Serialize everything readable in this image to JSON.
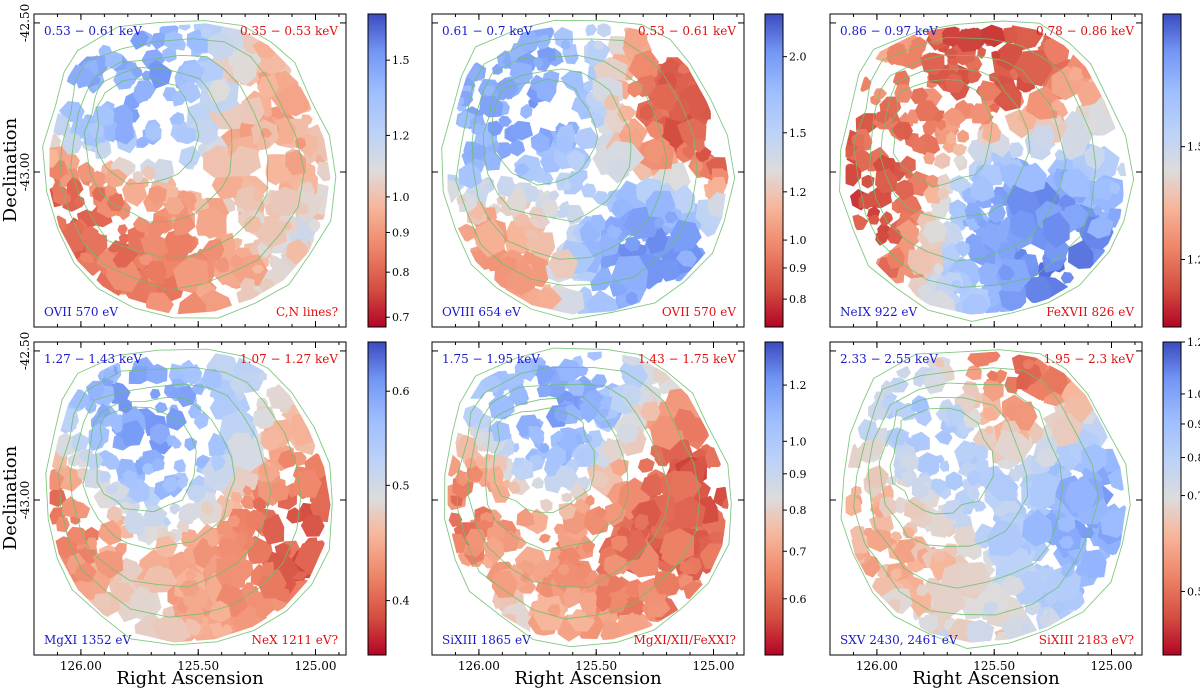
{
  "figure": {
    "xlabel": "Right Ascension",
    "ylabel": "Declination",
    "x_ticks": [
      "126.00",
      "125.50",
      "125.00"
    ],
    "y_ticks": [
      "-42.50",
      "-43.00"
    ]
  },
  "colors": {
    "blue_label": "#1a1acc",
    "red_label": "#e01010",
    "contour": "#6cbf6c",
    "cmap_low": "#b40426",
    "cmap_mid": "#dddcdc",
    "cmap_high": "#3b4cc0"
  },
  "chart_data": [
    {
      "type": "heatmap",
      "panel": "top-left",
      "band_high": "0.53 − 0.61 keV",
      "band_low": "0.35 − 0.53 keV",
      "line_high": "OVII 570 eV",
      "line_low": "C,N lines?",
      "colorbar": {
        "range": [
          0.68,
          1.72
        ],
        "ticks": [
          0.7,
          0.8,
          0.9,
          1.0,
          1.2,
          1.5
        ],
        "tick_labels": [
          "0.7",
          "0.8",
          "0.9",
          "1.0",
          "1.2",
          "1.5"
        ]
      },
      "hotspots": [
        {
          "ra": 125.72,
          "dec": -42.72,
          "value": 1.65
        },
        {
          "ra": 125.92,
          "dec": -42.74,
          "value": 1.45
        },
        {
          "ra": 126.08,
          "dec": -43.13,
          "value": 0.72
        },
        {
          "ra": 125.85,
          "dec": -43.26,
          "value": 0.8
        },
        {
          "ra": 125.62,
          "dec": -43.38,
          "value": 0.85
        },
        {
          "ra": 125.2,
          "dec": -42.82,
          "value": 0.9
        }
      ]
    },
    {
      "type": "heatmap",
      "panel": "top-middle",
      "band_high": "0.61 − 0.7 keV",
      "band_low": "0.53 − 0.61 keV",
      "line_high": "OVIII 654 eV",
      "line_low": "OVII 570 eV",
      "colorbar": {
        "range": [
          0.72,
          2.35
        ],
        "ticks": [
          0.8,
          0.9,
          1.0,
          1.2,
          1.5,
          2.0
        ],
        "tick_labels": [
          "0.8",
          "0.9",
          "1.0",
          "1.2",
          "1.5",
          "2.0"
        ]
      },
      "hotspots": [
        {
          "ra": 125.82,
          "dec": -42.72,
          "value": 2.2
        },
        {
          "ra": 125.95,
          "dec": -42.85,
          "value": 1.9
        },
        {
          "ra": 125.28,
          "dec": -43.28,
          "value": 2.3
        },
        {
          "ra": 125.0,
          "dec": -42.8,
          "value": 0.72
        },
        {
          "ra": 125.05,
          "dec": -42.72,
          "value": 0.85
        },
        {
          "ra": 125.95,
          "dec": -43.3,
          "value": 0.95
        }
      ]
    },
    {
      "type": "heatmap",
      "panel": "top-right",
      "band_high": "0.86 − 0.97 keV",
      "band_low": "0.78 − 0.86 keV",
      "line_high": "NeIX 922 eV",
      "line_low": "FeXVII 826 eV",
      "colorbar": {
        "range": [
          1.05,
          1.95
        ],
        "ticks": [
          1.2,
          1.5
        ],
        "tick_labels": [
          "1.2",
          "1.5"
        ]
      },
      "hotspots": [
        {
          "ra": 125.22,
          "dec": -43.28,
          "value": 1.95
        },
        {
          "ra": 125.45,
          "dec": -43.18,
          "value": 1.85
        },
        {
          "ra": 126.1,
          "dec": -43.17,
          "value": 1.08
        },
        {
          "ra": 126.02,
          "dec": -42.96,
          "value": 1.1
        },
        {
          "ra": 125.58,
          "dec": -42.58,
          "value": 1.15
        },
        {
          "ra": 125.48,
          "dec": -42.55,
          "value": 1.05
        }
      ]
    },
    {
      "type": "heatmap",
      "panel": "bottom-left",
      "band_high": "1.27 − 1.43 keV",
      "band_low": "1.07 − 1.27 keV",
      "line_high": "MgXI 1352 eV",
      "line_low": "NeX 1211 eV?",
      "colorbar": {
        "range": [
          0.36,
          0.66
        ],
        "ticks": [
          0.4,
          0.5,
          0.6
        ],
        "tick_labels": [
          "0.4",
          "0.5",
          "0.6"
        ]
      },
      "hotspots": [
        {
          "ra": 125.8,
          "dec": -42.75,
          "value": 0.64
        },
        {
          "ra": 125.62,
          "dec": -42.82,
          "value": 0.6
        },
        {
          "ra": 125.02,
          "dec": -43.18,
          "value": 0.36
        },
        {
          "ra": 125.1,
          "dec": -43.05,
          "value": 0.4
        },
        {
          "ra": 126.1,
          "dec": -43.02,
          "value": 0.38
        },
        {
          "ra": 125.35,
          "dec": -43.25,
          "value": 0.43
        }
      ]
    },
    {
      "type": "heatmap",
      "panel": "bottom-middle",
      "band_high": "1.75 − 1.95 keV",
      "band_low": "1.43 − 1.75 keV",
      "line_high": "SiXIII 1865 eV",
      "line_low": "MgXI/XII/FeXXI?",
      "colorbar": {
        "range": [
          0.5,
          1.38
        ],
        "ticks": [
          0.6,
          0.7,
          0.8,
          0.9,
          1.0,
          1.2
        ],
        "tick_labels": [
          "0.6",
          "0.7",
          "0.8",
          "0.9",
          "1.0",
          "1.2"
        ]
      },
      "hotspots": [
        {
          "ra": 125.7,
          "dec": -42.72,
          "value": 1.3
        },
        {
          "ra": 125.1,
          "dec": -42.95,
          "value": 0.52
        },
        {
          "ra": 125.2,
          "dec": -43.2,
          "value": 0.58
        },
        {
          "ra": 126.12,
          "dec": -43.02,
          "value": 0.58
        },
        {
          "ra": 125.5,
          "dec": -43.2,
          "value": 0.62
        }
      ]
    },
    {
      "type": "heatmap",
      "panel": "bottom-right",
      "band_high": "2.33 − 2.55 keV",
      "band_low": "1.95 − 2.3 keV",
      "line_high": "SXV 2430, 2461 eV",
      "line_low": "SiXIII 2183 eV?",
      "colorbar": {
        "range": [
          0.4,
          1.2
        ],
        "ticks": [
          0.5,
          0.7,
          0.8,
          0.9,
          1.0,
          1.2
        ],
        "tick_labels": [
          "0.5",
          "0.7",
          "0.8",
          "0.9",
          "1.0",
          "1.2"
        ]
      },
      "hotspots": [
        {
          "ra": 125.68,
          "dec": -42.82,
          "value": 1.1
        },
        {
          "ra": 125.15,
          "dec": -42.85,
          "value": 1.15
        },
        {
          "ra": 125.32,
          "dec": -42.58,
          "value": 0.42
        },
        {
          "ra": 125.38,
          "dec": -42.72,
          "value": 0.45
        },
        {
          "ra": 125.95,
          "dec": -43.05,
          "value": 0.55
        },
        {
          "ra": 125.05,
          "dec": -43.1,
          "value": 1.05
        }
      ]
    }
  ]
}
